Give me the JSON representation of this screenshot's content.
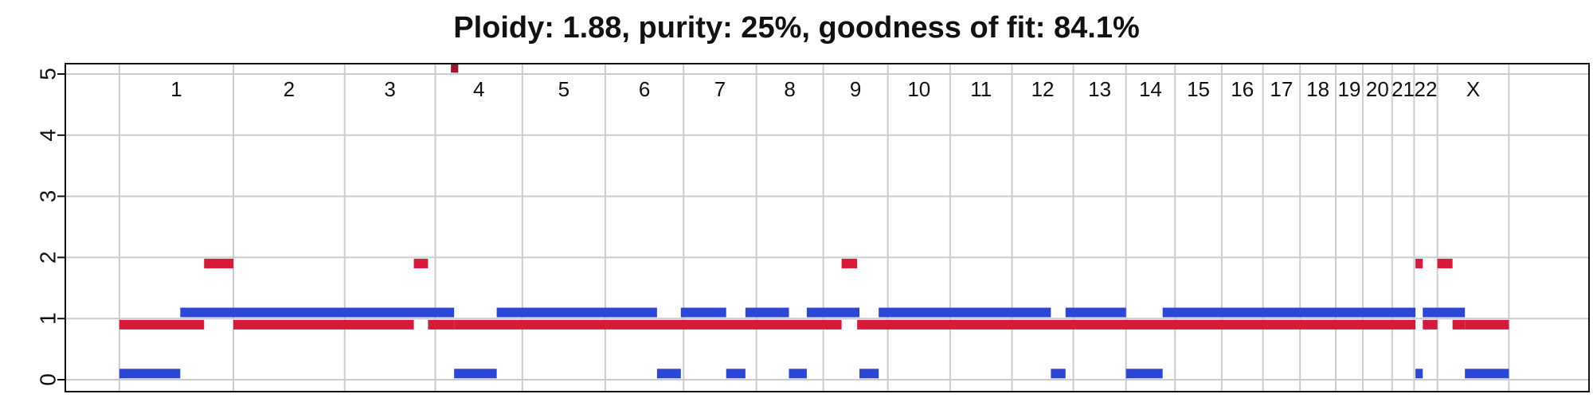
{
  "chart_data": {
    "type": "segment",
    "title": "Ploidy: 1.88, purity: 25%, goodness of fit: 84.1%",
    "xlabel": "",
    "ylabel": "",
    "ylim": [
      0,
      5
    ],
    "yticks": [
      0,
      1,
      2,
      3,
      4,
      5
    ],
    "grid": true,
    "colors": {
      "series_a": "#d7193a",
      "series_b": "#2c46d6",
      "outlier": "#9b1530"
    },
    "chromosomes": [
      {
        "label": "1",
        "start": 0,
        "end": 249
      },
      {
        "label": "2",
        "start": 249,
        "end": 492
      },
      {
        "label": "3",
        "start": 492,
        "end": 690
      },
      {
        "label": "4",
        "start": 690,
        "end": 880
      },
      {
        "label": "5",
        "start": 880,
        "end": 1061
      },
      {
        "label": "6",
        "start": 1061,
        "end": 1232
      },
      {
        "label": "7",
        "start": 1232,
        "end": 1391
      },
      {
        "label": "8",
        "start": 1391,
        "end": 1537
      },
      {
        "label": "9",
        "start": 1537,
        "end": 1678
      },
      {
        "label": "10",
        "start": 1678,
        "end": 1814
      },
      {
        "label": "11",
        "start": 1814,
        "end": 1949
      },
      {
        "label": "12",
        "start": 1949,
        "end": 2083
      },
      {
        "label": "13",
        "start": 2083,
        "end": 2198
      },
      {
        "label": "14",
        "start": 2198,
        "end": 2305
      },
      {
        "label": "15",
        "start": 2305,
        "end": 2407
      },
      {
        "label": "16",
        "start": 2407,
        "end": 2497
      },
      {
        "label": "17",
        "start": 2497,
        "end": 2578
      },
      {
        "label": "18",
        "start": 2578,
        "end": 2656
      },
      {
        "label": "19",
        "start": 2656,
        "end": 2715
      },
      {
        "label": "20",
        "start": 2715,
        "end": 2779
      },
      {
        "label": "21",
        "start": 2779,
        "end": 2827
      },
      {
        "label": "22",
        "start": 2827,
        "end": 2878
      },
      {
        "label": "X",
        "start": 2878,
        "end": 3034
      }
    ],
    "x_range": [
      -118,
      3209
    ],
    "series": [
      {
        "key": "series_a",
        "segments": [
          {
            "start": 0,
            "end": 185,
            "value": 0.9
          },
          {
            "start": 185,
            "end": 249,
            "value": 1.9
          },
          {
            "start": 249,
            "end": 643,
            "value": 0.9
          },
          {
            "start": 643,
            "end": 674,
            "value": 1.9
          },
          {
            "start": 674,
            "end": 731,
            "value": 0.9
          },
          {
            "start": 731,
            "end": 1577,
            "value": 0.9
          },
          {
            "start": 1577,
            "end": 1611,
            "value": 1.9
          },
          {
            "start": 1611,
            "end": 2830,
            "value": 0.9
          },
          {
            "start": 2830,
            "end": 2846,
            "value": 1.9
          },
          {
            "start": 2846,
            "end": 2878,
            "value": 0.9
          },
          {
            "start": 2878,
            "end": 2911,
            "value": 1.9
          },
          {
            "start": 2911,
            "end": 2938,
            "value": 0.9
          },
          {
            "start": 2938,
            "end": 3034,
            "value": 0.9
          }
        ]
      },
      {
        "key": "series_b",
        "segments": [
          {
            "start": 0,
            "end": 133,
            "value": 0.1
          },
          {
            "start": 133,
            "end": 731,
            "value": 1.1
          },
          {
            "start": 731,
            "end": 824,
            "value": 0.1
          },
          {
            "start": 824,
            "end": 1174,
            "value": 1.1
          },
          {
            "start": 1174,
            "end": 1226,
            "value": 0.1
          },
          {
            "start": 1226,
            "end": 1325,
            "value": 1.1
          },
          {
            "start": 1325,
            "end": 1367,
            "value": 0.1
          },
          {
            "start": 1367,
            "end": 1462,
            "value": 1.1
          },
          {
            "start": 1462,
            "end": 1501,
            "value": 0.1
          },
          {
            "start": 1501,
            "end": 1616,
            "value": 1.1
          },
          {
            "start": 1616,
            "end": 1658,
            "value": 0.1
          },
          {
            "start": 1658,
            "end": 2034,
            "value": 1.1
          },
          {
            "start": 2034,
            "end": 2066,
            "value": 0.1
          },
          {
            "start": 2066,
            "end": 2198,
            "value": 1.1
          },
          {
            "start": 2198,
            "end": 2278,
            "value": 0.1
          },
          {
            "start": 2278,
            "end": 2830,
            "value": 1.1
          },
          {
            "start": 2830,
            "end": 2846,
            "value": 0.1
          },
          {
            "start": 2846,
            "end": 2938,
            "value": 1.1
          },
          {
            "start": 2938,
            "end": 3034,
            "value": 0.1
          }
        ]
      },
      {
        "key": "outlier",
        "segments": [
          {
            "start": 724,
            "end": 740,
            "value": 5.1
          }
        ]
      }
    ]
  }
}
